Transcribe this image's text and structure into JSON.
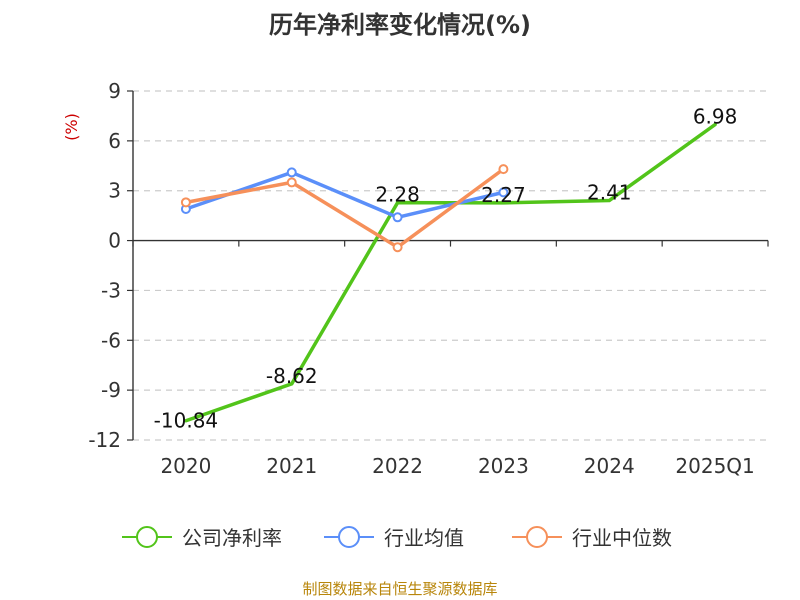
{
  "chart_data": {
    "type": "line",
    "title": "历年净利率变化情况(%)",
    "ylabel": "(%)",
    "categories": [
      "2020",
      "2021",
      "2022",
      "2023",
      "2024",
      "2025Q1"
    ],
    "y_ticks": [
      "9",
      "6",
      "3",
      "0",
      "-3",
      "-6",
      "-9",
      "-12"
    ],
    "ylim": [
      -12,
      9
    ],
    "grid": true,
    "legend_position": "bottom",
    "series": [
      {
        "name": "公司净利率",
        "color": "#52c41a",
        "values": [
          -10.84,
          -8.62,
          2.28,
          2.27,
          2.41,
          6.98
        ],
        "labels": [
          "-10.84",
          "-8.62",
          "2.28",
          "2.27",
          "2.41",
          "6.98"
        ]
      },
      {
        "name": "行业均值",
        "color": "#5b8ff9",
        "values": [
          1.9,
          4.1,
          1.4,
          2.9,
          null,
          null
        ]
      },
      {
        "name": "行业中位数",
        "color": "#f6905a",
        "values": [
          2.3,
          3.5,
          -0.4,
          4.3,
          null,
          null
        ]
      }
    ]
  },
  "source": "制图数据来自恒生聚源数据库"
}
